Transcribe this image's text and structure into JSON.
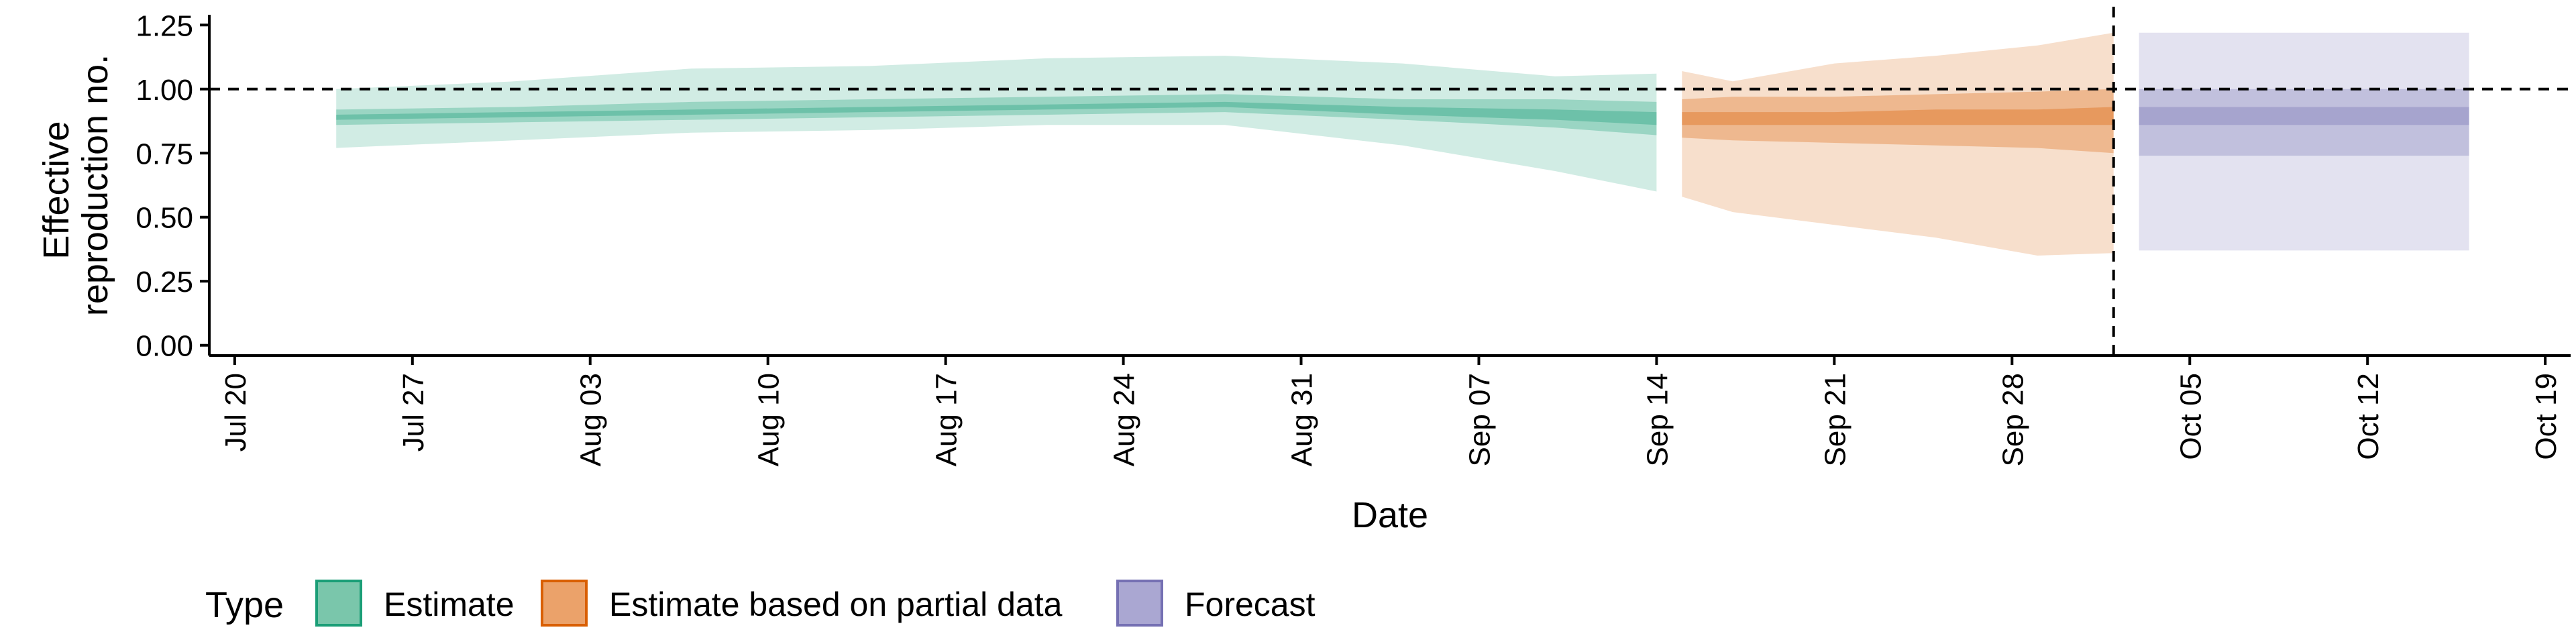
{
  "chart_data": {
    "type": "area",
    "title": "",
    "xlabel": "Date",
    "ylabel": [
      "Effective",
      "reproduction no."
    ],
    "xlim": [
      "2020-07-19",
      "2020-10-20"
    ],
    "ylim": [
      -0.04,
      1.29
    ],
    "x_ticks": [
      {
        "date": "2020-07-20",
        "label": "Jul 20"
      },
      {
        "date": "2020-07-27",
        "label": "Jul 27"
      },
      {
        "date": "2020-08-03",
        "label": "Aug 03"
      },
      {
        "date": "2020-08-10",
        "label": "Aug 10"
      },
      {
        "date": "2020-08-17",
        "label": "Aug 17"
      },
      {
        "date": "2020-08-24",
        "label": "Aug 24"
      },
      {
        "date": "2020-08-31",
        "label": "Aug 31"
      },
      {
        "date": "2020-09-07",
        "label": "Sep 07"
      },
      {
        "date": "2020-09-14",
        "label": "Sep 14"
      },
      {
        "date": "2020-09-21",
        "label": "Sep 21"
      },
      {
        "date": "2020-09-28",
        "label": "Sep 28"
      },
      {
        "date": "2020-10-05",
        "label": "Oct 05"
      },
      {
        "date": "2020-10-12",
        "label": "Oct 12"
      },
      {
        "date": "2020-10-19",
        "label": "Oct 19"
      }
    ],
    "y_ticks": [
      {
        "value": 0,
        "label": "0.00"
      },
      {
        "value": 0.25,
        "label": "0.25"
      },
      {
        "value": 0.5,
        "label": "0.50"
      },
      {
        "value": 0.75,
        "label": "0.75"
      },
      {
        "value": 1.0,
        "label": "1.00"
      },
      {
        "value": 1.25,
        "label": "1.25"
      }
    ],
    "reference_lines": {
      "horizontal_y": 1.0,
      "vertical_date": "2020-10-02"
    },
    "grid": false,
    "legend": {
      "position": "bottom-left",
      "title": "Type",
      "entries": [
        {
          "label": "Estimate",
          "fill": "#7ac6ab",
          "border": "#1b9e77"
        },
        {
          "label": "Estimate based on partial data",
          "fill": "#eba26a",
          "border": "#d95f02"
        },
        {
          "label": "Forecast",
          "fill": "#aaa7d2",
          "border": "#7570b3"
        }
      ]
    },
    "series": [
      {
        "name": "Estimate",
        "color": "#1b9e77",
        "points": [
          {
            "date": "2020-07-24",
            "lo90": 0.77,
            "lo50": 0.86,
            "lo20": 0.88,
            "hi20": 0.9,
            "hi50": 0.92,
            "hi90": 1.0
          },
          {
            "date": "2020-07-31",
            "lo90": 0.8,
            "lo50": 0.87,
            "lo20": 0.89,
            "hi20": 0.91,
            "hi50": 0.93,
            "hi90": 1.03
          },
          {
            "date": "2020-08-07",
            "lo90": 0.83,
            "lo50": 0.88,
            "lo20": 0.9,
            "hi20": 0.92,
            "hi50": 0.95,
            "hi90": 1.08
          },
          {
            "date": "2020-08-14",
            "lo90": 0.84,
            "lo50": 0.89,
            "lo20": 0.91,
            "hi20": 0.93,
            "hi50": 0.96,
            "hi90": 1.09
          },
          {
            "date": "2020-08-21",
            "lo90": 0.86,
            "lo50": 0.9,
            "lo20": 0.92,
            "hi20": 0.94,
            "hi50": 0.97,
            "hi90": 1.12
          },
          {
            "date": "2020-08-28",
            "lo90": 0.86,
            "lo50": 0.91,
            "lo20": 0.93,
            "hi20": 0.95,
            "hi50": 0.98,
            "hi90": 1.13
          },
          {
            "date": "2020-09-04",
            "lo90": 0.78,
            "lo50": 0.88,
            "lo20": 0.9,
            "hi20": 0.93,
            "hi50": 0.96,
            "hi90": 1.1
          },
          {
            "date": "2020-09-10",
            "lo90": 0.68,
            "lo50": 0.85,
            "lo20": 0.88,
            "hi20": 0.92,
            "hi50": 0.96,
            "hi90": 1.05
          },
          {
            "date": "2020-09-14",
            "lo90": 0.6,
            "lo50": 0.82,
            "lo20": 0.86,
            "hi20": 0.91,
            "hi50": 0.95,
            "hi90": 1.06
          }
        ]
      },
      {
        "name": "Estimate based on partial data",
        "color": "#d95f02",
        "points": [
          {
            "date": "2020-09-15",
            "lo90": 0.58,
            "lo50": 0.81,
            "lo20": 0.86,
            "hi20": 0.91,
            "hi50": 0.96,
            "hi90": 1.07
          },
          {
            "date": "2020-09-17",
            "lo90": 0.52,
            "lo50": 0.8,
            "lo20": 0.86,
            "hi20": 0.91,
            "hi50": 0.97,
            "hi90": 1.03
          },
          {
            "date": "2020-09-21",
            "lo90": 0.47,
            "lo50": 0.79,
            "lo20": 0.86,
            "hi20": 0.91,
            "hi50": 0.97,
            "hi90": 1.1
          },
          {
            "date": "2020-09-25",
            "lo90": 0.42,
            "lo50": 0.78,
            "lo20": 0.86,
            "hi20": 0.92,
            "hi50": 0.98,
            "hi90": 1.13
          },
          {
            "date": "2020-09-29",
            "lo90": 0.35,
            "lo50": 0.77,
            "lo20": 0.86,
            "hi20": 0.92,
            "hi50": 0.99,
            "hi90": 1.17
          },
          {
            "date": "2020-10-02",
            "lo90": 0.36,
            "lo50": 0.75,
            "lo20": 0.86,
            "hi20": 0.93,
            "hi50": 1.0,
            "hi90": 1.22
          }
        ]
      },
      {
        "name": "Forecast",
        "color": "#7570b3",
        "points": [
          {
            "date": "2020-10-03",
            "lo90": 0.37,
            "lo50": 0.74,
            "lo20": 0.86,
            "hi20": 0.93,
            "hi50": 1.0,
            "hi90": 1.22
          },
          {
            "date": "2020-10-16",
            "lo90": 0.37,
            "lo50": 0.74,
            "lo20": 0.86,
            "hi20": 0.93,
            "hi50": 1.0,
            "hi90": 1.22
          }
        ]
      }
    ]
  }
}
